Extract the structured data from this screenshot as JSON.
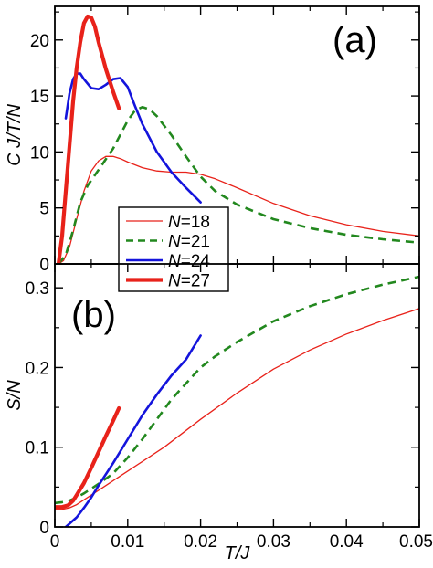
{
  "chart_data": [
    {
      "type": "line",
      "panel_label": "(a)",
      "xlabel": "",
      "ylabel": "C J/T/N",
      "xlim": [
        0,
        0.05
      ],
      "ylim": [
        0,
        23
      ],
      "x_ticks": [
        0,
        0.01,
        0.02,
        0.03,
        0.04,
        0.05
      ],
      "y_ticks": [
        0,
        5,
        10,
        15,
        20
      ],
      "y_tick_labels": [
        "0",
        "5",
        "10",
        "15",
        "20"
      ],
      "legend": {
        "placement": "lower-center",
        "entries": [
          {
            "var": "N",
            "eq": "=18",
            "color": "#e8221a",
            "style": "solid",
            "width": "thin"
          },
          {
            "var": "N",
            "eq": "=21",
            "color": "#22881e",
            "style": "dashed",
            "width": "medium"
          },
          {
            "var": "N",
            "eq": "=24",
            "color": "#1414dc",
            "style": "solid",
            "width": "medium"
          },
          {
            "var": "N",
            "eq": "=27",
            "color": "#e8221a",
            "style": "solid",
            "width": "thick"
          }
        ]
      },
      "series": [
        {
          "name": "N=18",
          "color": "#e8221a",
          "style": "solid",
          "width": "thin",
          "x": [
            0.0005,
            0.0012,
            0.002,
            0.003,
            0.004,
            0.005,
            0.006,
            0.007,
            0.008,
            0.009,
            0.01,
            0.012,
            0.014,
            0.016,
            0.018,
            0.02,
            0.022,
            0.025,
            0.03,
            0.035,
            0.04,
            0.045,
            0.05
          ],
          "y": [
            0,
            0.3,
            1.5,
            4.0,
            6.5,
            8.3,
            9.2,
            9.6,
            9.6,
            9.4,
            9.1,
            8.6,
            8.3,
            8.2,
            8.2,
            8.0,
            7.6,
            6.8,
            5.4,
            4.3,
            3.5,
            2.9,
            2.5
          ]
        },
        {
          "name": "N=21",
          "color": "#22881e",
          "style": "dashed",
          "width": "medium",
          "x": [
            0.0005,
            0.0015,
            0.0025,
            0.0035,
            0.0045,
            0.006,
            0.008,
            0.01,
            0.011,
            0.012,
            0.013,
            0.014,
            0.016,
            0.018,
            0.02,
            0.022,
            0.025,
            0.03,
            0.035,
            0.04,
            0.045,
            0.05
          ],
          "y": [
            0,
            0.8,
            3.0,
            5.5,
            7.0,
            8.4,
            10.3,
            12.8,
            13.7,
            14.0,
            13.8,
            13.2,
            11.5,
            9.6,
            7.8,
            6.5,
            5.3,
            4.0,
            3.2,
            2.6,
            2.2,
            1.9
          ]
        },
        {
          "name": "N=24",
          "color": "#1414dc",
          "style": "solid",
          "width": "medium",
          "x": [
            0.0015,
            0.002,
            0.0025,
            0.003,
            0.0035,
            0.004,
            0.005,
            0.006,
            0.007,
            0.008,
            0.009,
            0.01,
            0.011,
            0.012,
            0.014,
            0.016,
            0.018,
            0.02
          ],
          "y": [
            13.0,
            15.2,
            16.5,
            17.0,
            17.0,
            16.5,
            15.7,
            15.6,
            16.0,
            16.5,
            16.6,
            15.8,
            14.1,
            12.5,
            10.0,
            8.2,
            6.8,
            5.5
          ]
        },
        {
          "name": "N=27",
          "color": "#e8221a",
          "style": "solid",
          "width": "thick",
          "x": [
            0.0005,
            0.001,
            0.0015,
            0.002,
            0.0025,
            0.003,
            0.0035,
            0.004,
            0.0045,
            0.005,
            0.0055,
            0.006,
            0.007,
            0.008,
            0.0088
          ],
          "y": [
            0,
            2.5,
            6.5,
            10.5,
            14.5,
            17.5,
            19.8,
            21.5,
            22.1,
            22.0,
            21.2,
            19.8,
            17.4,
            15.4,
            13.9
          ]
        }
      ]
    },
    {
      "type": "line",
      "panel_label": "(b)",
      "xlabel": "T/J",
      "ylabel": "S/N",
      "xlim": [
        0,
        0.05
      ],
      "ylim": [
        0,
        0.33
      ],
      "x_ticks": [
        0,
        0.01,
        0.02,
        0.03,
        0.04,
        0.05
      ],
      "x_tick_labels": [
        "0",
        "0.01",
        "0.02",
        "0.03",
        "0.04",
        "0.05"
      ],
      "y_ticks": [
        0,
        0.1,
        0.2,
        0.3
      ],
      "y_tick_labels": [
        "0",
        "0.1",
        "0.2",
        "0.3"
      ],
      "series": [
        {
          "name": "N=18",
          "color": "#e8221a",
          "style": "solid",
          "width": "thin",
          "x": [
            0,
            0.001,
            0.002,
            0.003,
            0.004,
            0.006,
            0.008,
            0.01,
            0.012,
            0.015,
            0.02,
            0.025,
            0.03,
            0.035,
            0.04,
            0.045,
            0.05
          ],
          "y": [
            0.022,
            0.022,
            0.024,
            0.028,
            0.034,
            0.046,
            0.058,
            0.07,
            0.082,
            0.1,
            0.135,
            0.168,
            0.198,
            0.222,
            0.242,
            0.259,
            0.274
          ]
        },
        {
          "name": "N=21",
          "color": "#22881e",
          "style": "dashed",
          "width": "medium",
          "x": [
            0,
            0.001,
            0.002,
            0.003,
            0.004,
            0.006,
            0.008,
            0.01,
            0.012,
            0.014,
            0.016,
            0.018,
            0.02,
            0.022,
            0.025,
            0.03,
            0.035,
            0.04,
            0.045,
            0.05
          ],
          "y": [
            0.03,
            0.031,
            0.033,
            0.037,
            0.042,
            0.054,
            0.067,
            0.087,
            0.11,
            0.135,
            0.16,
            0.18,
            0.2,
            0.214,
            0.232,
            0.258,
            0.277,
            0.292,
            0.304,
            0.314
          ]
        },
        {
          "name": "N=24",
          "color": "#1414dc",
          "style": "solid",
          "width": "medium",
          "x": [
            0.0015,
            0.002,
            0.003,
            0.004,
            0.005,
            0.006,
            0.008,
            0.01,
            0.012,
            0.014,
            0.016,
            0.018,
            0.02
          ],
          "y": [
            0.0,
            0.004,
            0.012,
            0.024,
            0.037,
            0.052,
            0.08,
            0.11,
            0.14,
            0.166,
            0.19,
            0.21,
            0.24
          ]
        },
        {
          "name": "N=27",
          "color": "#e8221a",
          "style": "solid",
          "width": "thick",
          "x": [
            0,
            0.001,
            0.0018,
            0.0025,
            0.003,
            0.004,
            0.005,
            0.006,
            0.007,
            0.008,
            0.0088
          ],
          "y": [
            0.025,
            0.025,
            0.027,
            0.033,
            0.04,
            0.055,
            0.074,
            0.094,
            0.114,
            0.133,
            0.149
          ]
        }
      ]
    }
  ]
}
